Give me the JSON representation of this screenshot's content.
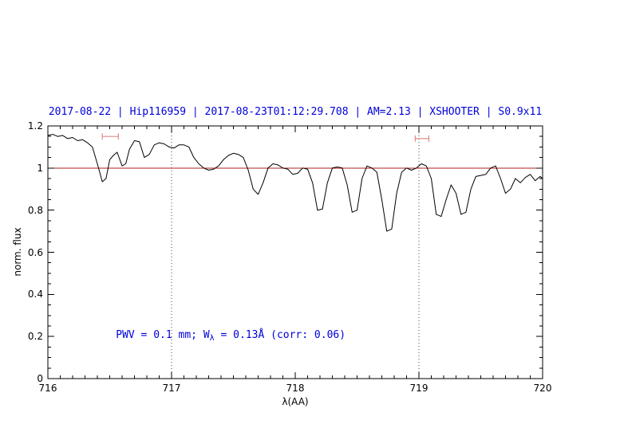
{
  "chart_data": {
    "type": "line",
    "title": "2017-08-22 | Hip116959 | 2017-08-23T01:12:29.708 | AM=2.13 | XSHOOTER | S0.9x11",
    "xlabel": "λ(AA)",
    "ylabel": "norm. flux",
    "xlim": [
      716,
      720
    ],
    "ylim": [
      0,
      1.2
    ],
    "x_ticks": [
      716,
      717,
      718,
      719,
      720
    ],
    "x_tick_labels": [
      "716",
      "717",
      "718",
      "719",
      "720"
    ],
    "x_minor_step": 0.1,
    "y_ticks": [
      0,
      0.2,
      0.4,
      0.6,
      0.8,
      1.0,
      1.2
    ],
    "y_tick_labels": [
      "0",
      "0.2",
      "0.4",
      "0.6",
      "0.8",
      "1",
      "1.2"
    ],
    "y_minor_step": 0.05,
    "grid": false,
    "legend": "none",
    "reference_line": {
      "y": 1.0
    },
    "dotted_vlines": [
      717,
      719
    ],
    "range_markers": [
      {
        "x_start": 716.44,
        "x_end": 716.57,
        "y": 1.15
      },
      {
        "x_start": 718.97,
        "x_end": 719.08,
        "y": 1.14
      }
    ],
    "annotation": {
      "full_text": "PWV = 0.1 mm; W_λ = 0.13Å (corr: 0.06)",
      "part1": "PWV = 0.1 mm; W",
      "subscript": "λ",
      "part2": " = 0.13Å (corr: 0.06)",
      "x": 716.55,
      "y": 0.2
    },
    "colors": {
      "title": "#0000dd",
      "annotation": "#0000dd",
      "spectrum": "#000000",
      "reference_line": "#b22222",
      "range_marker": "#e08a8a",
      "dotted_line": "#444444",
      "axis": "#000000"
    },
    "series": [
      {
        "name": "spectrum",
        "x": [
          716.0,
          716.04,
          716.08,
          716.12,
          716.16,
          716.2,
          716.24,
          716.28,
          716.32,
          716.36,
          716.4,
          716.44,
          716.47,
          716.5,
          716.53,
          716.56,
          716.6,
          716.63,
          716.66,
          716.7,
          716.74,
          716.78,
          716.82,
          716.86,
          716.9,
          716.94,
          716.98,
          717.02,
          717.06,
          717.1,
          717.14,
          717.18,
          717.22,
          717.26,
          717.3,
          717.34,
          717.38,
          717.42,
          717.46,
          717.5,
          717.54,
          717.58,
          717.62,
          717.66,
          717.7,
          717.74,
          717.78,
          717.82,
          717.86,
          717.9,
          717.94,
          717.98,
          718.02,
          718.06,
          718.1,
          718.14,
          718.18,
          718.22,
          718.26,
          718.3,
          718.34,
          718.38,
          718.42,
          718.46,
          718.5,
          718.54,
          718.58,
          718.62,
          718.66,
          718.7,
          718.74,
          718.78,
          718.82,
          718.86,
          718.9,
          718.94,
          718.98,
          719.02,
          719.06,
          719.1,
          719.14,
          719.18,
          719.22,
          719.26,
          719.3,
          719.34,
          719.38,
          719.42,
          719.46,
          719.5,
          719.54,
          719.58,
          719.62,
          719.66,
          719.7,
          719.74,
          719.78,
          719.82,
          719.86,
          719.9,
          719.94,
          719.98,
          720.0
        ],
        "y": [
          1.155,
          1.16,
          1.15,
          1.155,
          1.14,
          1.145,
          1.13,
          1.135,
          1.12,
          1.1,
          1.02,
          0.935,
          0.95,
          1.04,
          1.06,
          1.075,
          1.01,
          1.02,
          1.09,
          1.13,
          1.125,
          1.05,
          1.065,
          1.11,
          1.12,
          1.115,
          1.1,
          1.095,
          1.11,
          1.11,
          1.1,
          1.05,
          1.02,
          1.0,
          0.99,
          0.995,
          1.01,
          1.04,
          1.06,
          1.07,
          1.065,
          1.05,
          0.99,
          0.9,
          0.875,
          0.93,
          1.0,
          1.02,
          1.015,
          1.0,
          0.995,
          0.97,
          0.975,
          1.0,
          0.995,
          0.93,
          0.8,
          0.805,
          0.93,
          1.0,
          1.005,
          1.0,
          0.92,
          0.79,
          0.8,
          0.95,
          1.01,
          1.0,
          0.98,
          0.85,
          0.7,
          0.71,
          0.88,
          0.98,
          1.0,
          0.99,
          1.0,
          1.02,
          1.01,
          0.95,
          0.78,
          0.77,
          0.85,
          0.92,
          0.88,
          0.78,
          0.79,
          0.9,
          0.96,
          0.965,
          0.97,
          1.0,
          1.01,
          0.95,
          0.88,
          0.9,
          0.95,
          0.93,
          0.955,
          0.97,
          0.94,
          0.96,
          0.95
        ]
      }
    ]
  }
}
